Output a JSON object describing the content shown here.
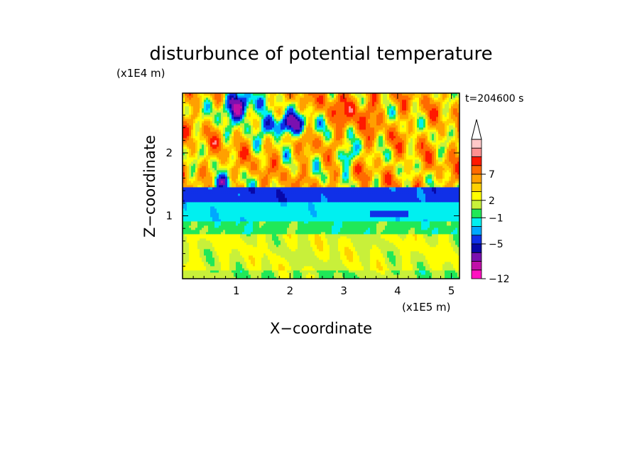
{
  "chart_data": {
    "type": "heatmap",
    "title": "disturbunce of potential temperature",
    "time_label": "t=204600 s",
    "xlabel": "X−coordinate",
    "ylabel": "Z−coordinate",
    "x_unit": "(x1E5 m)",
    "y_unit": "(x1E4 m)",
    "xlim": [
      0,
      5.15
    ],
    "ylim": [
      0,
      2.95
    ],
    "x_ticks": [
      {
        "v": 1,
        "label": "1"
      },
      {
        "v": 2,
        "label": "2"
      },
      {
        "v": 3,
        "label": "3"
      },
      {
        "v": 4,
        "label": "4"
      },
      {
        "v": 5,
        "label": "5"
      }
    ],
    "y_ticks": [
      {
        "v": 1,
        "label": "1"
      },
      {
        "v": 2,
        "label": "2"
      }
    ],
    "colorbar": {
      "colors": [
        "#ff10c0",
        "#c010a8",
        "#7a10b0",
        "#0808a8",
        "#1030e8",
        "#00a8ff",
        "#00f0f0",
        "#20e858",
        "#c8f03a",
        "#ffff00",
        "#ffd000",
        "#ffa000",
        "#ff6a00",
        "#ff1800",
        "#ff9090",
        "#ffc8c8"
      ],
      "labels": [
        {
          "v": "−12",
          "edge": 0
        },
        {
          "v": "−5",
          "edge": 4
        },
        {
          "v": "−1",
          "edge": 7
        },
        {
          "v": "2",
          "edge": 9
        },
        {
          "v": "7",
          "edge": 12
        }
      ],
      "extend": "max"
    },
    "field_description": [
      {
        "z": [
          0.0,
          0.7
        ],
        "dominant": "yellow/orange (slightly positive, ~0 to 2)"
      },
      {
        "z": [
          0.7,
          0.9
        ],
        "dominant": "green/cyan (around -1 to 0)"
      },
      {
        "z": [
          0.9,
          1.25
        ],
        "dominant": "cyan (about -2 to -1)"
      },
      {
        "z": [
          1.25,
          1.45
        ],
        "dominant": "blue (about -5 to -3)"
      },
      {
        "z": [
          1.45,
          2.95
        ],
        "dominant": "mixed orange/red positive with blue negative patches (about -5 to 7)"
      }
    ]
  }
}
